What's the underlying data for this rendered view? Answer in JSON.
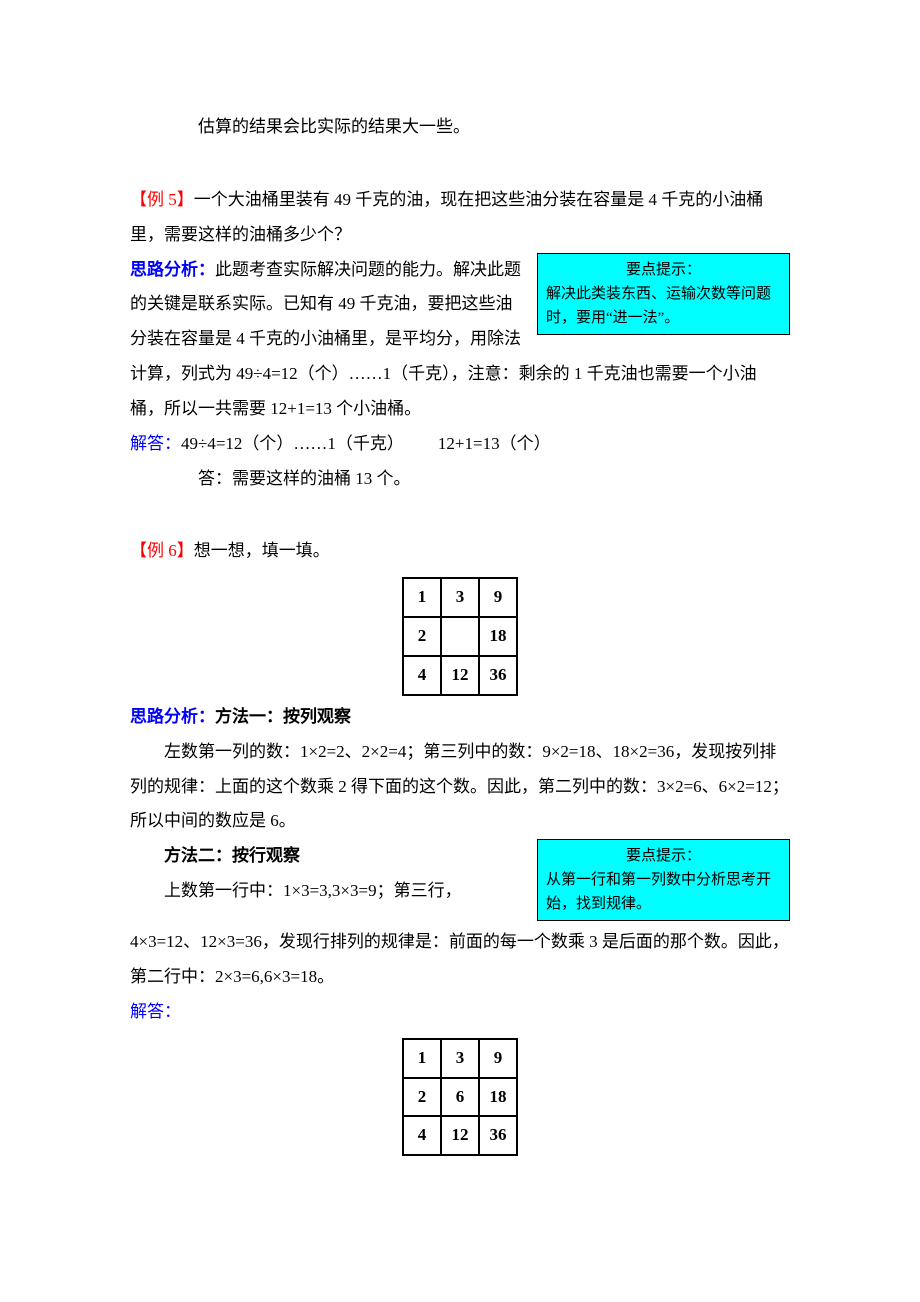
{
  "intro_line": "估算的结果会比实际的结果大一些。",
  "ex5": {
    "label": "【例 5】",
    "question": "一个大油桶里装有 49 千克的油，现在把这些油分装在容量是 4 千克的小油桶里，需要这样的油桶多少个？",
    "analysis_label": "思路分析：",
    "analysis_pre": "此题考查实际解决问题的能力。解决此题的关键是联系实际。已知有 49 千克油，要把这些油分装在容量是 4 千克的小油桶里，是平均分，用除法计算，列式为 49÷4=12（个）……1（千克），注意：剩余的 1 千克油也需要一个小油桶，所以一共需要 12+1=13 个小油桶。",
    "tip_title": "要点提示：",
    "tip_body": "解决此类装东西、运输次数等问题时，要用“进一法”。",
    "answer_label": "解答：",
    "answer_calc": "49÷4=12（个）……1（千克）  12+1=13（个）",
    "answer_text": "答：需要这样的油桶 13 个。"
  },
  "ex6": {
    "label": "【例 6】",
    "question": "想一想，填一填。",
    "table1": [
      [
        "1",
        "3",
        "9"
      ],
      [
        "2",
        "",
        "18"
      ],
      [
        "4",
        "12",
        "36"
      ]
    ],
    "analysis_label": "思路分析：",
    "method1_title": "方法一：按列观察",
    "method1_body1": "左数第一列的数：1×2=2、2×2=4；第三列中的数：9×2=18、18×2=36，发现按列排列的规律：上面的这个数乘 2 得下面的这个数。因此，第二列中的数：3×2=6、6×2=12；所以中间的数应是 6。",
    "tip_title": "要点提示：",
    "tip_body": "从第一行和第一列数中分析思考开始，找到规律。",
    "method2_title": "方法二：按行观察",
    "method2_body_pre": "上数第一行中：1×3=3,3×3=9；第三行，",
    "method2_body_post": "4×3=12、12×3=36，发现行排列的规律是：前面的每一个数乘 3 是后面的那个数。因此，第二行中：2×3=6,6×3=18。",
    "answer_label": "解答：",
    "table2": [
      [
        "1",
        "3",
        "9"
      ],
      [
        "2",
        "6",
        "18"
      ],
      [
        "4",
        "12",
        "36"
      ]
    ]
  }
}
